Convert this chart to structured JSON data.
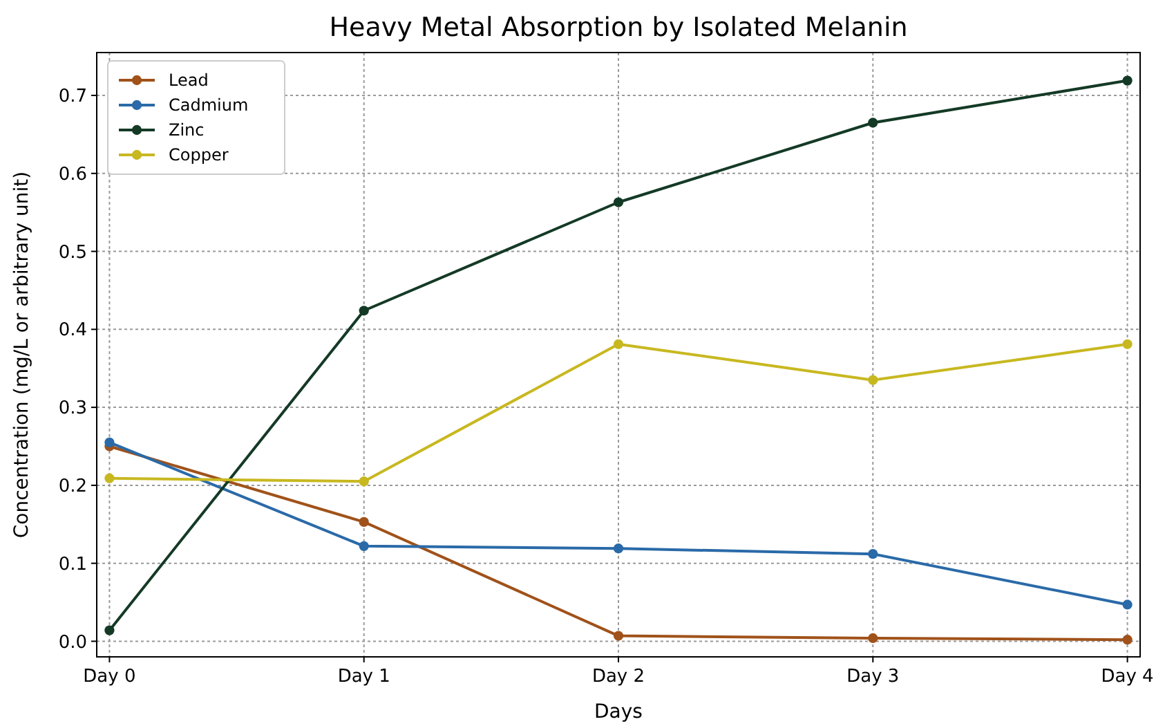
{
  "chart_data": {
    "type": "line",
    "title": "Heavy Metal Absorption by Isolated Melanin",
    "xlabel": "Days",
    "ylabel": "Concentration (mg/L or arbitrary unit)",
    "categories": [
      "Day 0",
      "Day 1",
      "Day 2",
      "Day 3",
      "Day 4"
    ],
    "series": [
      {
        "name": "Lead",
        "color": "#a0521a",
        "values": [
          0.25,
          0.153,
          0.007,
          0.004,
          0.002
        ]
      },
      {
        "name": "Cadmium",
        "color": "#2a6aa8",
        "values": [
          0.255,
          0.122,
          0.119,
          0.112,
          0.047
        ]
      },
      {
        "name": "Zinc",
        "color": "#143a26",
        "values": [
          0.014,
          0.424,
          0.563,
          0.665,
          0.719
        ]
      },
      {
        "name": "Copper",
        "color": "#c8b820",
        "values": [
          0.209,
          0.205,
          0.381,
          0.335,
          0.381
        ]
      }
    ],
    "ylim": [
      -0.02,
      0.755
    ],
    "yticks": [
      {
        "value": 0,
        "label": "0.0"
      },
      {
        "value": 0.1,
        "label": "0.1"
      },
      {
        "value": 0.2,
        "label": "0.2"
      },
      {
        "value": 0.3,
        "label": "0.3"
      },
      {
        "value": 0.4,
        "label": "0.4"
      },
      {
        "value": 0.5,
        "label": "0.5"
      },
      {
        "value": 0.6,
        "label": "0.6"
      },
      {
        "value": 0.7,
        "label": "0.7"
      }
    ],
    "grid": true,
    "legend": "top left",
    "marker": "circle",
    "line_style": "solid"
  }
}
